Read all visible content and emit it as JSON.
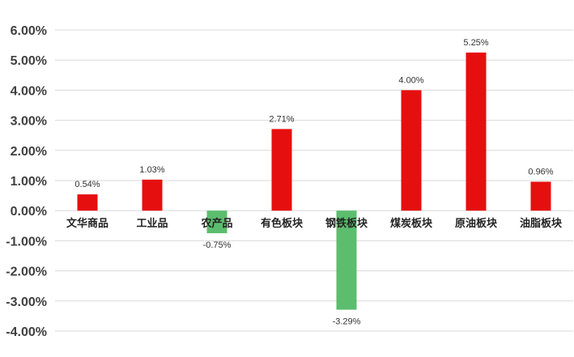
{
  "chart_data": {
    "type": "bar",
    "title": "",
    "xlabel": "",
    "ylabel": "",
    "categories": [
      "文华商品",
      "工业品",
      "农产品",
      "有色板块",
      "钢铁板块",
      "煤炭板块",
      "原油板块",
      "油脂板块"
    ],
    "values": [
      0.54,
      1.03,
      -0.75,
      2.71,
      -3.29,
      4.0,
      5.25,
      0.96
    ],
    "data_labels": [
      "0.54%",
      "1.03%",
      "-0.75%",
      "2.71%",
      "-3.29%",
      "4.00%",
      "5.25%",
      "0.96%"
    ],
    "ylim": [
      -4,
      6
    ],
    "yticks": [
      6,
      5,
      4,
      3,
      2,
      1,
      0,
      -1,
      -2,
      -3,
      -4
    ],
    "ytick_labels": [
      "6.00%",
      "5.00%",
      "4.00%",
      "3.00%",
      "2.00%",
      "1.00%",
      "0.00%",
      "-1.00%",
      "-2.00%",
      "-3.00%",
      "-4.00%"
    ],
    "grid": true,
    "legend": "none",
    "colors": {
      "positive": "#e60f0f",
      "negative": "#5cbd6e",
      "grid": "#d9d9d9"
    }
  }
}
